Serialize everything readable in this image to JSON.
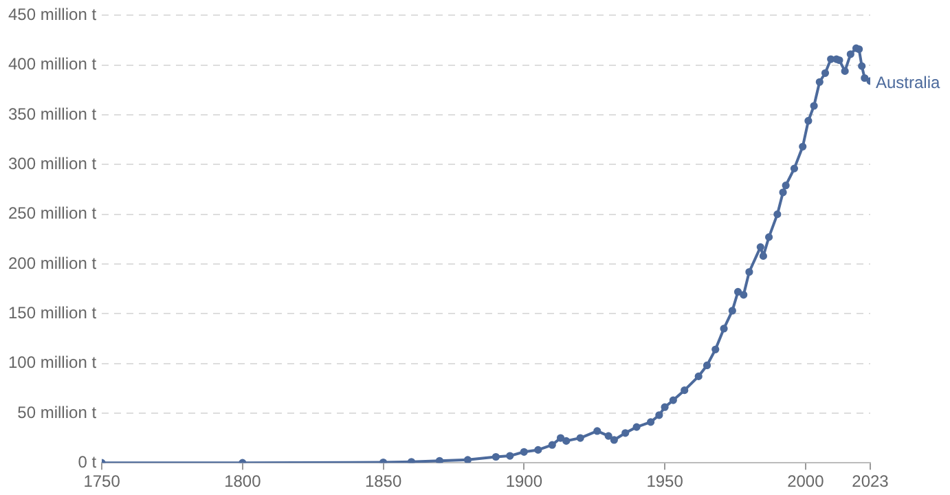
{
  "chart_data": {
    "type": "line",
    "x": [
      1750,
      1800,
      1850,
      1860,
      1870,
      1880,
      1890,
      1895,
      1900,
      1905,
      1910,
      1913,
      1915,
      1920,
      1926,
      1930,
      1932,
      1936,
      1940,
      1945,
      1948,
      1950,
      1953,
      1957,
      1962,
      1965,
      1968,
      1971,
      1974,
      1976,
      1978,
      1980,
      1984,
      1985,
      1987,
      1990,
      1992,
      1993,
      1996,
      1999,
      2001,
      2003,
      2005,
      2007,
      2009,
      2011,
      2012,
      2014,
      2016,
      2018,
      2019,
      2020,
      2021,
      2023
    ],
    "series": [
      {
        "name": "Australia",
        "color": "#4c6a9c",
        "values": [
          0,
          0,
          0.5,
          1,
          2,
          3,
          6,
          7,
          11,
          13,
          18,
          25,
          22,
          25,
          32,
          27,
          23,
          30,
          36,
          41,
          48,
          56,
          63,
          73,
          87,
          98,
          114,
          135,
          153,
          172,
          169,
          192,
          217,
          208,
          227,
          250,
          272,
          279,
          296,
          318,
          344,
          359,
          383,
          392,
          406,
          406,
          405,
          394,
          411,
          417,
          416,
          399,
          387,
          384
        ]
      }
    ],
    "xlim": [
      1750,
      2023
    ],
    "xticks": [
      1750,
      1800,
      1850,
      1900,
      1950,
      2000,
      2023
    ],
    "ylim": [
      0,
      450
    ],
    "yticks": [
      {
        "value": 0,
        "label": "0 t"
      },
      {
        "value": 50,
        "label": "50 million t"
      },
      {
        "value": 100,
        "label": "100 million t"
      },
      {
        "value": 150,
        "label": "150 million t"
      },
      {
        "value": 200,
        "label": "200 million t"
      },
      {
        "value": 250,
        "label": "250 million t"
      },
      {
        "value": 300,
        "label": "300 million t"
      },
      {
        "value": 350,
        "label": "350 million t"
      },
      {
        "value": 400,
        "label": "400 million t"
      },
      {
        "value": 450,
        "label": "450 million t"
      }
    ],
    "grid": "y",
    "marker": "circle",
    "line_style": "solid",
    "legend": false
  }
}
